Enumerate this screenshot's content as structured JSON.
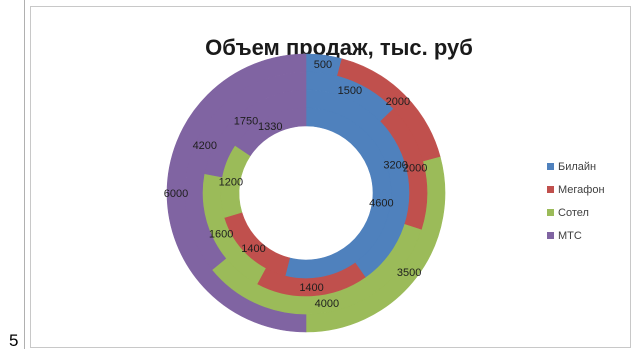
{
  "side_label": "5",
  "chart_data": {
    "type": "donut",
    "title": "Объем продаж, тыс. руб",
    "series": [
      {
        "name": "Билайн",
        "color": "#4F81BD",
        "values": [
          500,
          1500,
          3200,
          4600
        ]
      },
      {
        "name": "Мегафон",
        "color": "#C0504D",
        "values": [
          2000,
          2000,
          1400,
          1400
        ]
      },
      {
        "name": "Сотел",
        "color": "#9BBB59",
        "values": [
          3500,
          4000,
          1600,
          1200
        ]
      },
      {
        "name": "МТС",
        "color": "#8064A2",
        "values": [
          6000,
          4200,
          1750,
          1330
        ]
      }
    ],
    "legend_position": "right"
  }
}
